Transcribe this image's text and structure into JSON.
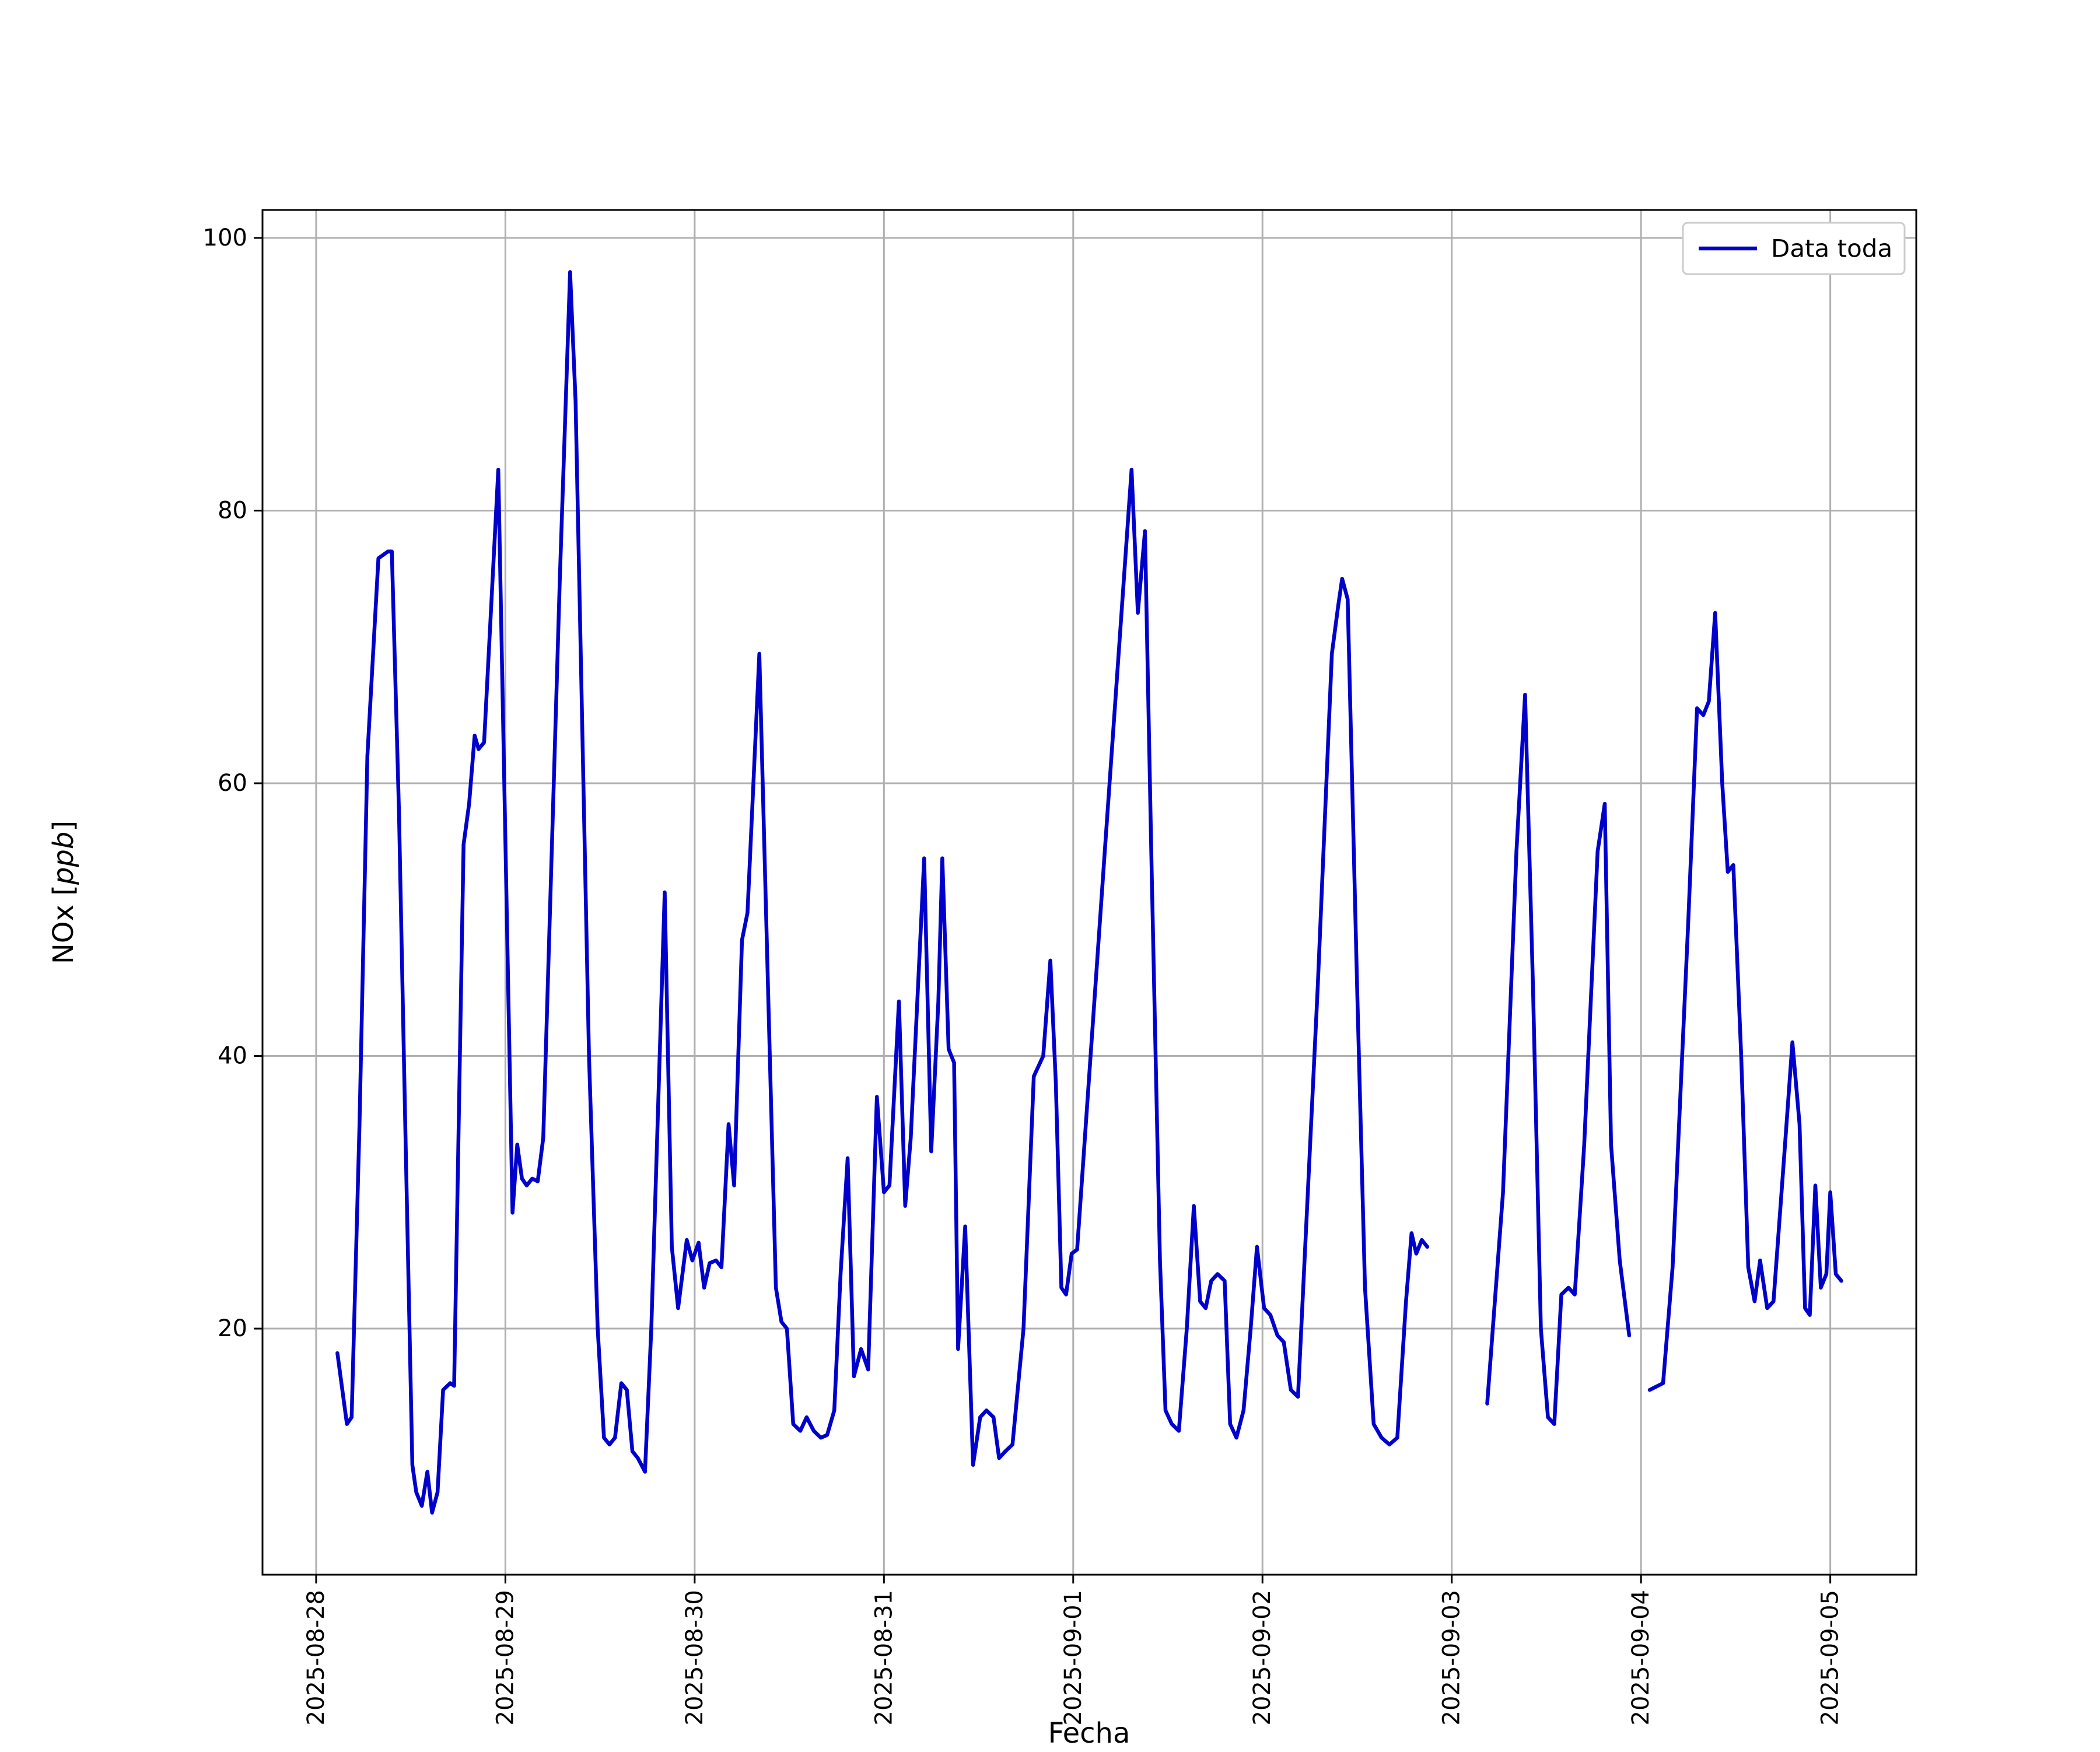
{
  "figure": {
    "background": "#ffffff"
  },
  "chart_data": {
    "type": "line",
    "title": "",
    "xlabel": "Fecha",
    "ylabel": "NOx [ppb]",
    "ylabel_parts": {
      "prefix": "NOx [",
      "math": "ppb",
      "suffix": "]"
    },
    "x_unit": "hours since 2025-08-28 00:00",
    "xlim": [
      -6.8,
      202.9
    ],
    "ylim": [
      1.95,
      102.05
    ],
    "grid": true,
    "legend": {
      "position": "upper right",
      "entries": [
        "Data toda"
      ]
    },
    "x_ticks": [
      {
        "h": 0,
        "label": "2025-08-28"
      },
      {
        "h": 24,
        "label": "2025-08-29"
      },
      {
        "h": 48,
        "label": "2025-08-30"
      },
      {
        "h": 72,
        "label": "2025-08-31"
      },
      {
        "h": 96,
        "label": "2025-09-01"
      },
      {
        "h": 120,
        "label": "2025-09-02"
      },
      {
        "h": 144,
        "label": "2025-09-03"
      },
      {
        "h": 168,
        "label": "2025-09-04"
      },
      {
        "h": 192,
        "label": "2025-09-05"
      }
    ],
    "y_ticks": [
      20,
      40,
      60,
      80,
      100
    ],
    "series": [
      {
        "name": "Data toda",
        "color": "#0000cd",
        "linewidth": 6.5,
        "segments": [
          [
            [
              2.7,
              18.2
            ],
            [
              3.9,
              13
            ],
            [
              4.5,
              13.5
            ],
            [
              5.5,
              35
            ],
            [
              6.5,
              62
            ],
            [
              7.9,
              76.5
            ],
            [
              9.1,
              77
            ],
            [
              9.6,
              77
            ],
            [
              10.5,
              58
            ],
            [
              11.3,
              35
            ],
            [
              12.2,
              10
            ],
            [
              12.7,
              8
            ],
            [
              13.4,
              7
            ],
            [
              14.1,
              9.5
            ],
            [
              14.7,
              6.5
            ],
            [
              15.4,
              8
            ],
            [
              16.1,
              15.5
            ],
            [
              17,
              16
            ],
            [
              17.5,
              15.8
            ],
            [
              18.7,
              55.5
            ],
            [
              19.4,
              58.5
            ],
            [
              20.1,
              63.5
            ],
            [
              20.6,
              62.5
            ],
            [
              21.3,
              63
            ],
            [
              23.1,
              83
            ],
            [
              24.9,
              28.5
            ],
            [
              25.5,
              33.5
            ],
            [
              26.1,
              31
            ],
            [
              26.7,
              30.5
            ],
            [
              27.4,
              31
            ],
            [
              28.1,
              30.8
            ],
            [
              28.8,
              34
            ],
            [
              30.9,
              75
            ],
            [
              32.2,
              97.5
            ],
            [
              32.9,
              88
            ],
            [
              34.6,
              40
            ],
            [
              35.7,
              20
            ],
            [
              36.5,
              12
            ],
            [
              37.2,
              11.5
            ],
            [
              37.9,
              12
            ],
            [
              38.7,
              16
            ],
            [
              39.4,
              15.5
            ],
            [
              40.1,
              11
            ],
            [
              40.8,
              10.5
            ],
            [
              41.7,
              9.5
            ],
            [
              42.5,
              20
            ],
            [
              44.2,
              52
            ],
            [
              45.1,
              26
            ],
            [
              45.9,
              21.5
            ],
            [
              47,
              26.5
            ],
            [
              47.7,
              25
            ],
            [
              48.5,
              26.3
            ],
            [
              49.2,
              23
            ],
            [
              49.9,
              24.8
            ],
            [
              50.7,
              25
            ],
            [
              51.4,
              24.5
            ],
            [
              52.3,
              35
            ],
            [
              53,
              30.5
            ],
            [
              54,
              48.5
            ],
            [
              54.7,
              50.5
            ],
            [
              56.2,
              69.5
            ],
            [
              57.3,
              45
            ],
            [
              58.3,
              23
            ],
            [
              59,
              20.5
            ],
            [
              59.7,
              20
            ],
            [
              60.5,
              13
            ],
            [
              61.4,
              12.5
            ],
            [
              62.2,
              13.5
            ],
            [
              63.1,
              12.5
            ],
            [
              64,
              12
            ],
            [
              64.8,
              12.2
            ],
            [
              65.7,
              14
            ],
            [
              66.5,
              24
            ],
            [
              67.4,
              32.5
            ],
            [
              68.2,
              16.5
            ],
            [
              69.1,
              18.5
            ],
            [
              70,
              17
            ],
            [
              71.1,
              37
            ],
            [
              72,
              30
            ],
            [
              72.7,
              30.5
            ],
            [
              73.9,
              44
            ],
            [
              74.7,
              29
            ],
            [
              75.4,
              34
            ],
            [
              77.1,
              54.5
            ],
            [
              78,
              33
            ],
            [
              78.9,
              44
            ],
            [
              79.4,
              54.5
            ],
            [
              80.2,
              40.5
            ],
            [
              80.9,
              39.5
            ],
            [
              81.4,
              18.5
            ],
            [
              82.3,
              27.5
            ],
            [
              83.3,
              10
            ],
            [
              84.2,
              13.5
            ],
            [
              85,
              14
            ],
            [
              85.9,
              13.5
            ],
            [
              86.6,
              10.5
            ],
            [
              87.4,
              11
            ],
            [
              88.3,
              11.5
            ],
            [
              89.7,
              20
            ],
            [
              91,
              38.5
            ],
            [
              92.2,
              40
            ],
            [
              93.1,
              47
            ],
            [
              93.8,
              38
            ],
            [
              94.5,
              23
            ],
            [
              95.1,
              22.5
            ],
            [
              95.8,
              25.5
            ],
            [
              96.5,
              25.8
            ],
            [
              100,
              55
            ],
            [
              103.4,
              83
            ],
            [
              104.2,
              72.5
            ],
            [
              105.1,
              78.5
            ],
            [
              105.9,
              55
            ],
            [
              107,
              25
            ],
            [
              107.7,
              14
            ],
            [
              108.5,
              13
            ],
            [
              109.4,
              12.5
            ],
            [
              110.4,
              20
            ],
            [
              111.3,
              29
            ],
            [
              112.1,
              22
            ],
            [
              112.8,
              21.5
            ],
            [
              113.5,
              23.5
            ],
            [
              114.3,
              24
            ],
            [
              115.2,
              23.5
            ],
            [
              115.9,
              13
            ],
            [
              116.7,
              12
            ],
            [
              117.6,
              14
            ],
            [
              118.5,
              20
            ],
            [
              119.3,
              26
            ],
            [
              120.2,
              21.5
            ],
            [
              121,
              21
            ],
            [
              121.9,
              19.5
            ],
            [
              122.7,
              19
            ],
            [
              123.6,
              15.5
            ],
            [
              124.5,
              15
            ],
            [
              127,
              45
            ],
            [
              128.8,
              69.5
            ],
            [
              129.6,
              73
            ],
            [
              130.1,
              75
            ],
            [
              130.8,
              73.5
            ],
            [
              132,
              45
            ],
            [
              133,
              23
            ],
            [
              134.1,
              13
            ],
            [
              135.1,
              12
            ],
            [
              136.1,
              11.5
            ],
            [
              137.1,
              12
            ],
            [
              138.2,
              22
            ],
            [
              138.9,
              27
            ],
            [
              139.5,
              25.5
            ],
            [
              140.2,
              26.5
            ],
            [
              140.9,
              26
            ]
          ],
          [
            [
              148.5,
              14.5
            ],
            [
              150.5,
              30
            ],
            [
              152.2,
              55
            ],
            [
              153.3,
              66.5
            ],
            [
              154.3,
              45
            ],
            [
              155.3,
              20
            ],
            [
              156.2,
              13.5
            ],
            [
              157,
              13
            ],
            [
              157.9,
              22.5
            ],
            [
              158.8,
              23
            ],
            [
              159.6,
              22.5
            ],
            [
              160.8,
              33.5
            ],
            [
              162.5,
              55
            ],
            [
              163.4,
              58.5
            ],
            [
              164.2,
              33.5
            ],
            [
              165.3,
              25
            ],
            [
              166.5,
              19.5
            ]
          ],
          [
            [
              169.1,
              15.5
            ],
            [
              170.8,
              16
            ],
            [
              172,
              24.5
            ],
            [
              174,
              50
            ],
            [
              175.1,
              65.5
            ],
            [
              175.9,
              65
            ],
            [
              176.6,
              66
            ],
            [
              177.4,
              72.5
            ],
            [
              178.3,
              60
            ],
            [
              179,
              53.5
            ],
            [
              179.7,
              54
            ],
            [
              180.7,
              40
            ],
            [
              181.6,
              24.5
            ],
            [
              182.4,
              22
            ],
            [
              183.1,
              25
            ],
            [
              184,
              21.5
            ],
            [
              184.8,
              22
            ],
            [
              186.2,
              33
            ],
            [
              187.2,
              41
            ],
            [
              188.1,
              35
            ],
            [
              188.8,
              21.5
            ],
            [
              189.4,
              21
            ],
            [
              190.1,
              30.5
            ],
            [
              190.8,
              23
            ],
            [
              191.5,
              24
            ],
            [
              192,
              30
            ],
            [
              192.7,
              24
            ],
            [
              193.4,
              23.5
            ]
          ]
        ]
      }
    ]
  }
}
